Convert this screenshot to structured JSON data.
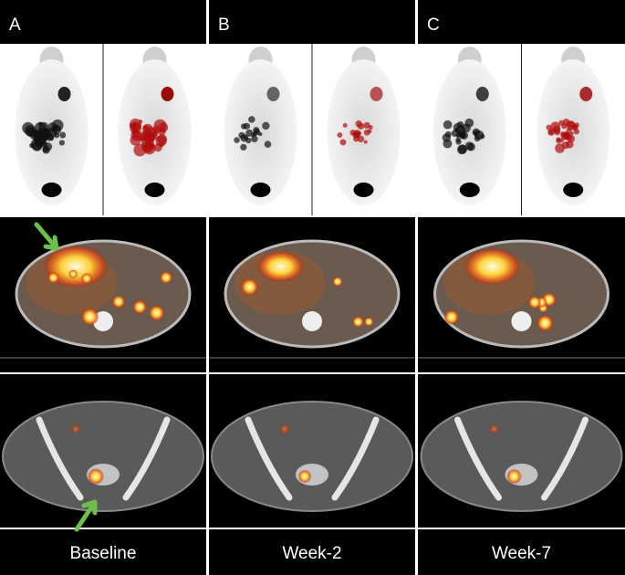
{
  "panels": [
    {
      "label": "A",
      "caption": "Baseline"
    },
    {
      "label": "B",
      "caption": "Week-2"
    },
    {
      "label": "C",
      "caption": "Week-7"
    }
  ]
}
